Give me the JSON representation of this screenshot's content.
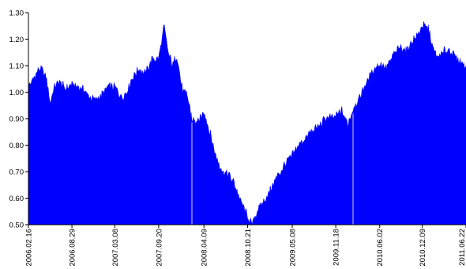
{
  "chart_data": {
    "type": "area",
    "title": "",
    "xlabel": "",
    "ylabel": "",
    "ylim": [
      0.5,
      1.3
    ],
    "yticks": [
      "0.50",
      "0.60",
      "0.70",
      "0.80",
      "0.90",
      "1.00",
      "1.10",
      "1.20",
      "1.30"
    ],
    "xticks": [
      "2006.02.16",
      "2006.08.29",
      "2007.03.08",
      "2007.09.20",
      "2008.04.09",
      "2008.10.21",
      "2009.05.08",
      "2009.11.18",
      "2010.06.02",
      "2010.12.09",
      "2011.06.22"
    ],
    "grid": false,
    "legend": "none",
    "fill_color": "#0000ff",
    "series": [
      {
        "x": [
          "2006.02.16",
          "2006.03.15",
          "2006.04.10",
          "2006.05.05",
          "2006.05.25",
          "2006.06.10",
          "2006.07.05",
          "2006.08.01",
          "2006.08.29",
          "2006.09.25",
          "2006.10.20",
          "2006.11.20",
          "2006.12.15",
          "2007.01.10",
          "2007.02.05",
          "2007.03.08",
          "2007.04.05",
          "2007.05.01",
          "2007.05.28",
          "2007.06.25",
          "2007.07.20",
          "2007.08.20",
          "2007.09.20",
          "2007.10.15",
          "2007.11.01",
          "2007.11.20",
          "2007.12.10",
          "2008.01.05",
          "2008.01.25",
          "2008.02.15",
          "2008.03.10",
          "2008.04.09",
          "2008.05.05",
          "2008.06.01",
          "2008.07.01",
          "2008.07.28",
          "2008.08.25",
          "2008.09.20",
          "2008.10.21",
          "2008.11.10",
          "2008.12.01",
          "2008.12.25",
          "2009.01.20",
          "2009.02.15",
          "2009.03.10",
          "2009.04.05",
          "2009.05.08",
          "2009.06.05",
          "2009.07.01",
          "2009.08.01",
          "2009.09.01",
          "2009.10.01",
          "2009.11.18",
          "2009.12.15",
          "2010.01.10",
          "2010.02.05",
          "2010.03.05",
          "2010.04.01",
          "2010.05.01",
          "2010.06.02",
          "2010.07.01",
          "2010.08.01",
          "2010.09.01",
          "2010.10.01",
          "2010.11.01",
          "2010.11.20",
          "2010.12.09",
          "2011.01.05",
          "2011.01.25",
          "2011.02.15",
          "2011.03.10",
          "2011.04.05",
          "2011.05.01",
          "2011.05.20",
          "2011.06.22"
        ],
        "y": [
          1.02,
          1.06,
          1.09,
          1.06,
          0.96,
          1.02,
          1.04,
          1.01,
          1.03,
          1.02,
          1.01,
          0.98,
          0.97,
          0.99,
          1.02,
          1.02,
          0.98,
          1.0,
          1.06,
          1.09,
          1.07,
          1.12,
          1.13,
          1.25,
          1.15,
          1.1,
          1.14,
          1.0,
          0.99,
          0.9,
          0.88,
          0.93,
          0.85,
          0.76,
          0.7,
          0.69,
          0.65,
          0.59,
          0.53,
          0.5,
          0.55,
          0.58,
          0.61,
          0.66,
          0.69,
          0.73,
          0.76,
          0.8,
          0.82,
          0.85,
          0.87,
          0.9,
          0.91,
          0.93,
          0.88,
          0.94,
          0.98,
          1.03,
          1.08,
          1.11,
          1.09,
          1.14,
          1.17,
          1.16,
          1.2,
          1.22,
          1.25,
          1.24,
          1.17,
          1.13,
          1.15,
          1.16,
          1.14,
          1.12,
          1.1
        ]
      }
    ]
  }
}
